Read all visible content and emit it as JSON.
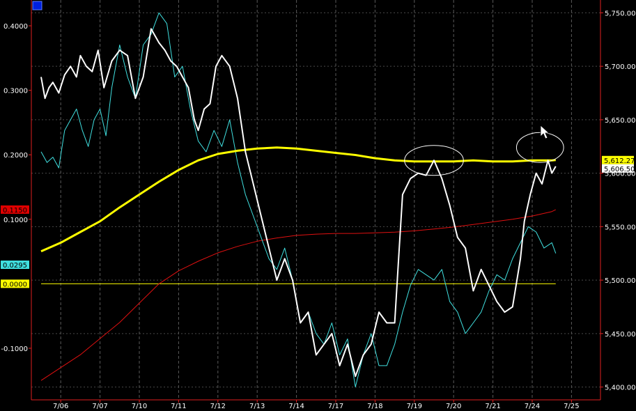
{
  "corner_badge": "",
  "chart_data": {
    "type": "line",
    "x_ticks": [
      "7/06",
      "7/07",
      "7/10",
      "7/11",
      "7/12",
      "7/13",
      "7/14",
      "7/17",
      "7/18",
      "7/19",
      "7/20",
      "7/21",
      "7/24",
      "7/25"
    ],
    "left_axis": {
      "ticks": [
        0.4,
        0.3,
        0.2,
        0.1,
        -0.1
      ],
      "tick_labels": [
        "0.4000",
        "0.3000",
        "0.2000",
        "0.1000",
        "-0.1000"
      ],
      "ylim": [
        -0.18,
        0.44
      ]
    },
    "right_axis": {
      "ticks": [
        5750,
        5700,
        5650,
        5600,
        5550,
        5500,
        5450,
        5400
      ],
      "tick_labels": [
        "5,750.00",
        "5,700.00",
        "5,650.00",
        "5,600.00",
        "5,550.00",
        "5,500.00",
        "5,450.00",
        "5,400.00"
      ],
      "ylim": [
        5388,
        5762
      ]
    },
    "value_badges": [
      {
        "id": "red",
        "axis": "left",
        "value": 0.115,
        "label": "0.1150",
        "bg": "#e00000",
        "fg": "#000000"
      },
      {
        "id": "cyan",
        "axis": "left",
        "value": 0.0295,
        "label": "0.0295",
        "bg": "#40e0e0",
        "fg": "#000000"
      },
      {
        "id": "yellow-zero",
        "axis": "left",
        "value": 0.0,
        "label": "0.0000",
        "bg": "#ffff00",
        "fg": "#000000"
      },
      {
        "id": "yellow-right",
        "axis": "right",
        "value": 5612.27,
        "label": "5,612.27",
        "bg": "#ffff00",
        "fg": "#000000"
      },
      {
        "id": "white-right",
        "axis": "right",
        "value": 5606.5,
        "label": "5,606.50",
        "bg": "#ffffff",
        "fg": "#000000"
      }
    ],
    "series": [
      {
        "axis": "right",
        "color": "#ffffff",
        "x": [
          0,
          0.1,
          0.2,
          0.3,
          0.45,
          0.6,
          0.75,
          0.9,
          1.0,
          1.15,
          1.3,
          1.45,
          1.6,
          1.8,
          2.0,
          2.2,
          2.4,
          2.6,
          2.8,
          3.0,
          3.15,
          3.3,
          3.45,
          3.6,
          3.75,
          3.9,
          4.0,
          4.15,
          4.3,
          4.45,
          4.6,
          4.8,
          5.0,
          5.2,
          5.4,
          5.6,
          5.8,
          6.0,
          6.2,
          6.4,
          6.6,
          6.8,
          7.0,
          7.2,
          7.4,
          7.6,
          7.8,
          8.0,
          8.2,
          8.4,
          8.6,
          8.8,
          9.0,
          9.1,
          9.2,
          9.4,
          9.6,
          9.8,
          10.0,
          10.2,
          10.4,
          10.6,
          10.8,
          11.0,
          11.2,
          11.4,
          11.6,
          11.8,
          12.0,
          12.2,
          12.3,
          12.45,
          12.6,
          12.75,
          12.9,
          13.0,
          13.1
        ],
        "y": [
          5690,
          5670,
          5680,
          5685,
          5675,
          5692,
          5700,
          5690,
          5710,
          5700,
          5695,
          5715,
          5680,
          5705,
          5715,
          5710,
          5670,
          5690,
          5735,
          5722,
          5715,
          5705,
          5700,
          5690,
          5680,
          5650,
          5640,
          5660,
          5665,
          5700,
          5710,
          5700,
          5670,
          5620,
          5590,
          5560,
          5530,
          5500,
          5520,
          5500,
          5460,
          5470,
          5430,
          5440,
          5450,
          5420,
          5440,
          5410,
          5430,
          5440,
          5470,
          5460,
          5460,
          5520,
          5580,
          5595,
          5600,
          5598,
          5612,
          5595,
          5570,
          5540,
          5530,
          5490,
          5510,
          5495,
          5480,
          5470,
          5475,
          5520,
          5555,
          5580,
          5600,
          5590,
          5612,
          5600,
          5606.5
        ]
      },
      {
        "axis": "right",
        "color": "#40e0e0",
        "x": [
          0,
          0.15,
          0.3,
          0.45,
          0.6,
          0.75,
          0.9,
          1.05,
          1.2,
          1.35,
          1.5,
          1.65,
          1.8,
          2.0,
          2.2,
          2.4,
          2.6,
          2.8,
          3.0,
          3.2,
          3.4,
          3.6,
          3.8,
          4.0,
          4.2,
          4.4,
          4.6,
          4.8,
          5.0,
          5.2,
          5.4,
          5.6,
          5.8,
          6.0,
          6.2,
          6.4,
          6.6,
          6.8,
          7.0,
          7.2,
          7.4,
          7.6,
          7.8,
          8.0,
          8.2,
          8.4,
          8.6,
          8.8,
          9.0,
          9.2,
          9.4,
          9.6,
          9.8,
          10.0,
          10.2,
          10.4,
          10.6,
          10.8,
          11.0,
          11.2,
          11.4,
          11.6,
          11.8,
          12.0,
          12.2,
          12.4,
          12.6,
          12.8,
          13.0,
          13.1
        ],
        "y": [
          5620,
          5610,
          5615,
          5605,
          5640,
          5650,
          5660,
          5640,
          5625,
          5650,
          5660,
          5635,
          5680,
          5720,
          5690,
          5670,
          5720,
          5730,
          5750,
          5740,
          5690,
          5700,
          5660,
          5630,
          5620,
          5640,
          5625,
          5650,
          5610,
          5580,
          5560,
          5540,
          5520,
          5510,
          5530,
          5500,
          5460,
          5470,
          5450,
          5440,
          5460,
          5430,
          5445,
          5400,
          5430,
          5450,
          5420,
          5420,
          5440,
          5470,
          5495,
          5510,
          5505,
          5500,
          5510,
          5480,
          5470,
          5450,
          5460,
          5470,
          5490,
          5505,
          5500,
          5520,
          5535,
          5550,
          5545,
          5530,
          5535,
          5525
        ]
      },
      {
        "axis": "right",
        "color": "#ffff00",
        "x": [
          0,
          0.5,
          1.0,
          1.5,
          2.0,
          2.5,
          3.0,
          3.5,
          4.0,
          4.5,
          5.0,
          5.5,
          6.0,
          6.5,
          7.0,
          7.5,
          8.0,
          8.5,
          9.0,
          9.5,
          10.0,
          10.5,
          11.0,
          11.5,
          12.0,
          12.5,
          13.0,
          13.1
        ],
        "y": [
          5527,
          5535,
          5545,
          5555,
          5568,
          5580,
          5592,
          5603,
          5612,
          5618,
          5621,
          5623,
          5624,
          5623,
          5621,
          5619,
          5617,
          5614,
          5612,
          5611,
          5611,
          5611,
          5612,
          5611,
          5611,
          5612,
          5612,
          5612.27
        ]
      },
      {
        "axis": "left",
        "color": "#e01010",
        "x": [
          0,
          0.5,
          1.0,
          1.5,
          2.0,
          2.5,
          3.0,
          3.5,
          4.0,
          4.5,
          5.0,
          5.5,
          6.0,
          6.5,
          7.0,
          7.5,
          8.0,
          8.5,
          9.0,
          9.5,
          10.0,
          10.5,
          11.0,
          11.5,
          12.0,
          12.5,
          13.0,
          13.1
        ],
        "y": [
          -0.15,
          -0.13,
          -0.11,
          -0.085,
          -0.06,
          -0.03,
          0.0,
          0.02,
          0.035,
          0.048,
          0.058,
          0.066,
          0.071,
          0.075,
          0.077,
          0.078,
          0.078,
          0.079,
          0.08,
          0.082,
          0.085,
          0.088,
          0.092,
          0.096,
          0.1,
          0.105,
          0.112,
          0.115
        ]
      },
      {
        "axis": "left",
        "color": "#ffff00",
        "x": [
          0,
          13.1
        ],
        "y": [
          0.0,
          0.0
        ]
      }
    ],
    "annotations": [
      {
        "type": "ellipse",
        "x_center": 10.0,
        "y_center": 5612,
        "rx_days": 0.75,
        "ry_units": 14,
        "color": "#ffffff"
      },
      {
        "type": "ellipse",
        "x_center": 12.7,
        "y_center": 5624,
        "rx_days": 0.6,
        "ry_units": 14,
        "color": "#ffffff"
      }
    ],
    "grid": true
  }
}
